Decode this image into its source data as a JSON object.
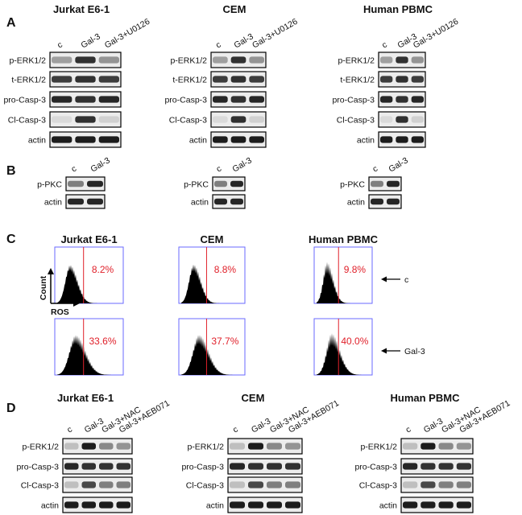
{
  "panel_A": {
    "label": "A",
    "groups": [
      {
        "title": "Jurkat E6-1",
        "lanes": [
          "c",
          "Gal-3",
          "Gal-3+U0126"
        ],
        "rows": [
          "p-ERK1/2",
          "t-ERK1/2",
          "pro-Casp-3",
          "Cl-Casp-3",
          "actin"
        ]
      },
      {
        "title": "CEM",
        "lanes": [
          "c",
          "Gal-3",
          "Gal-3+U0126"
        ],
        "rows": [
          "p-ERK1/2",
          "t-ERK1/2",
          "pro-Casp-3",
          "Cl-Casp-3",
          "actin"
        ]
      },
      {
        "title": "Human PBMC",
        "lanes": [
          "c",
          "Gal-3",
          "Gal-3+U0126"
        ],
        "rows": [
          "p-ERK1/2",
          "t-ERK1/2",
          "pro-Casp-3",
          "Cl-Casp-3",
          "actin"
        ]
      }
    ]
  },
  "panel_B": {
    "label": "B",
    "groups": [
      {
        "lanes": [
          "c",
          "Gal-3"
        ],
        "rows": [
          "p-PKC",
          "actin"
        ]
      },
      {
        "lanes": [
          "c",
          "Gal-3"
        ],
        "rows": [
          "p-PKC",
          "actin"
        ]
      },
      {
        "lanes": [
          "c",
          "Gal-3"
        ],
        "rows": [
          "p-PKC",
          "actin"
        ]
      }
    ]
  },
  "panel_C": {
    "label": "C",
    "titles": [
      "Jurkat E6-1",
      "CEM",
      "Human PBMC"
    ],
    "y_axis_label": "Count",
    "x_axis_label": "ROS",
    "rows": [
      {
        "marker": "c",
        "percents": [
          "8.2%",
          "8.8%",
          "9.8%"
        ]
      },
      {
        "marker": "Gal-3",
        "percents": [
          "33.6%",
          "37.7%",
          "40.0%"
        ]
      }
    ]
  },
  "panel_D": {
    "label": "D",
    "groups": [
      {
        "title": "Jurkat E6-1",
        "lanes": [
          "c",
          "Gal-3",
          "Gal-3+NAC",
          "Gal-3+AEB071"
        ],
        "rows": [
          "p-ERK1/2",
          "pro-Casp-3",
          "Cl-Casp-3",
          "actin"
        ]
      },
      {
        "title": "CEM",
        "lanes": [
          "c",
          "Gal-3",
          "Gal-3+NAC",
          "Gal-3+AEB071"
        ],
        "rows": [
          "p-ERK1/2",
          "pro-Casp-3",
          "Cl-Casp-3",
          "actin"
        ]
      },
      {
        "title": "Human PBMC",
        "lanes": [
          "c",
          "Gal-3",
          "Gal-3+NAC",
          "Gal-3+AEB071"
        ],
        "rows": [
          "p-ERK1/2",
          "pro-Casp-3",
          "Cl-Casp-3",
          "actin"
        ]
      }
    ]
  }
}
